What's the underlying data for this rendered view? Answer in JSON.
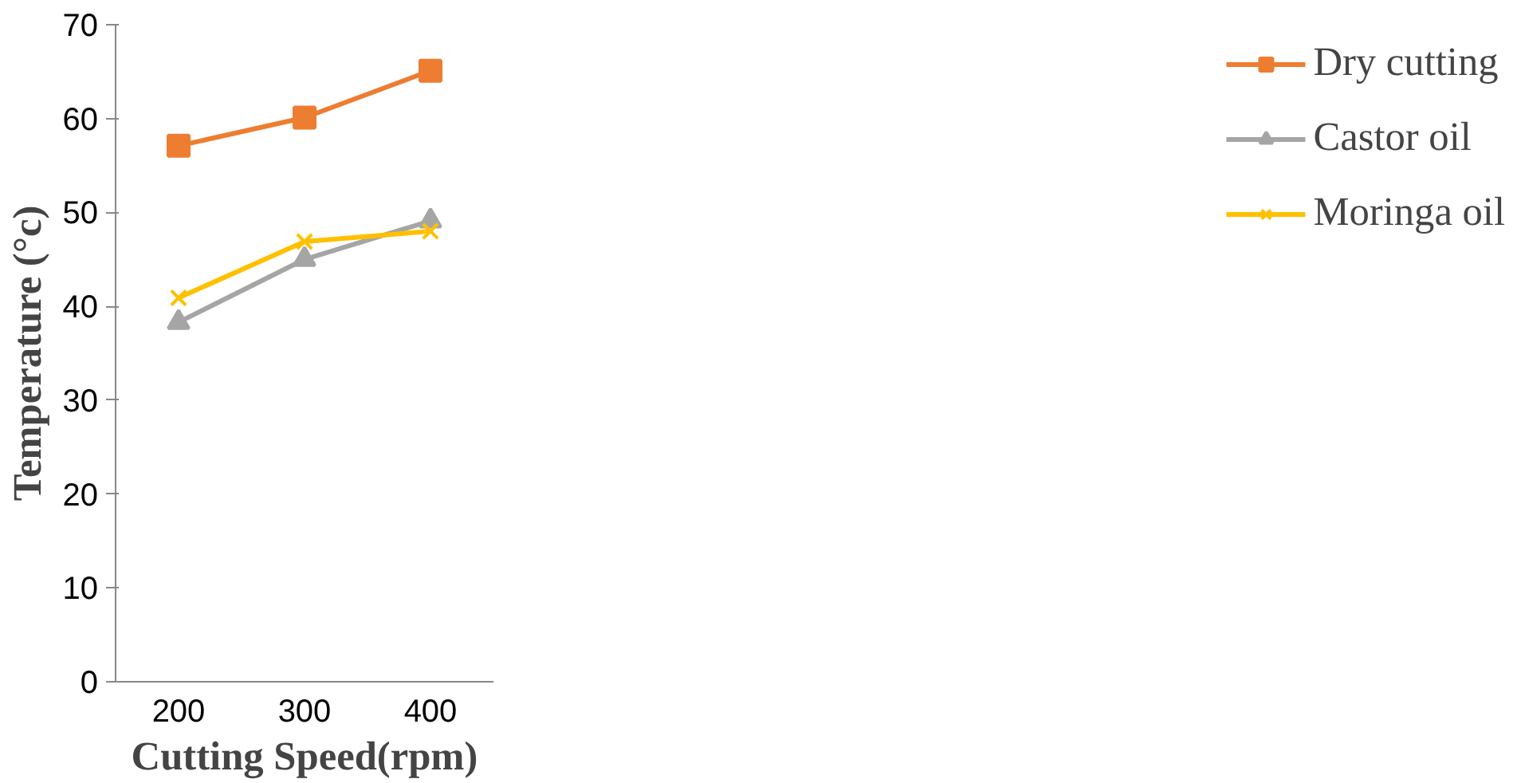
{
  "chart_data": {
    "type": "line",
    "xlabel": "Cutting Speed(rpm)",
    "ylabel": "Temperature (°c)",
    "categories": [
      "200",
      "300",
      "400"
    ],
    "series": [
      {
        "name": "Dry cutting",
        "color": "#ed7d31",
        "marker": "square",
        "values": [
          57.1,
          60.1,
          65.1
        ]
      },
      {
        "name": "Castor oil",
        "color": "#a5a5a5",
        "marker": "triangle",
        "values": [
          38.3,
          45.0,
          49.1
        ]
      },
      {
        "name": "Moringa oil",
        "color": "#ffc000",
        "marker": "cross",
        "values": [
          40.9,
          46.9,
          48.0
        ]
      }
    ],
    "ylim": [
      0,
      70
    ],
    "yticks": [
      0,
      10,
      20,
      30,
      40,
      50,
      60,
      70
    ],
    "grid": false,
    "legend": "right"
  }
}
